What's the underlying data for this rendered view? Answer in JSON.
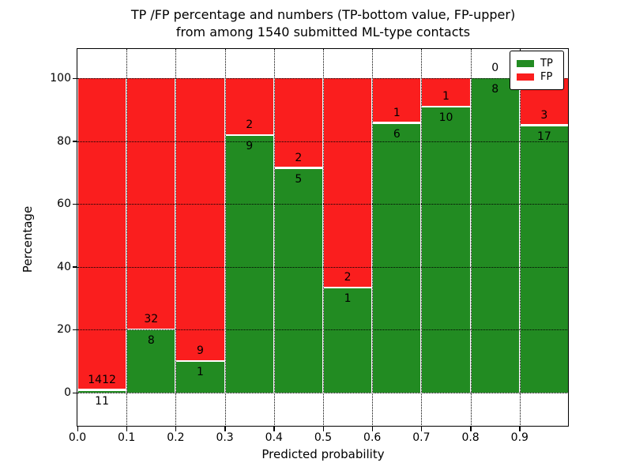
{
  "title": {
    "line1": "TP /FP percentage and numbers (TP-bottom value, FP-upper)",
    "line2": "from among 1540 submitted ML-type contacts"
  },
  "legend": {
    "items": [
      {
        "label": "TP",
        "color": "#228b22"
      },
      {
        "label": "FP",
        "color": "#fa1e1e"
      }
    ]
  },
  "chart_data": {
    "type": "bar",
    "stacked": true,
    "normalized_to_percent": true,
    "title": "TP /FP percentage and numbers (TP-bottom value, FP-upper) from among 1540 submitted ML-type contacts",
    "xlabel": "Predicted probability",
    "ylabel": "Percentage",
    "total_contacts": 1540,
    "categories": [
      "0.0-0.1",
      "0.1-0.2",
      "0.2-0.3",
      "0.3-0.4",
      "0.4-0.5",
      "0.5-0.6",
      "0.6-0.7",
      "0.7-0.8",
      "0.8-0.9",
      "0.9-1.0"
    ],
    "series": [
      {
        "name": "TP",
        "color": "#228b22",
        "values": [
          11,
          8,
          1,
          9,
          5,
          1,
          6,
          10,
          8,
          17
        ]
      },
      {
        "name": "FP",
        "color": "#fa1e1e",
        "values": [
          1412,
          32,
          9,
          2,
          2,
          2,
          1,
          1,
          0,
          3
        ]
      }
    ],
    "tp_percent": [
      0.77,
      20.0,
      10.0,
      81.82,
      71.43,
      33.33,
      85.71,
      90.91,
      100.0,
      85.0
    ],
    "x_ticks": [
      "0.0",
      "0.1",
      "0.2",
      "0.3",
      "0.4",
      "0.5",
      "0.6",
      "0.7",
      "0.8",
      "0.9"
    ],
    "y_ticks": [
      "0",
      "20",
      "40",
      "60",
      "80",
      "100"
    ],
    "xlim": [
      0.0,
      1.0
    ],
    "ylim": [
      0,
      100
    ],
    "grid": "dotted",
    "legend_position": "upper right"
  }
}
